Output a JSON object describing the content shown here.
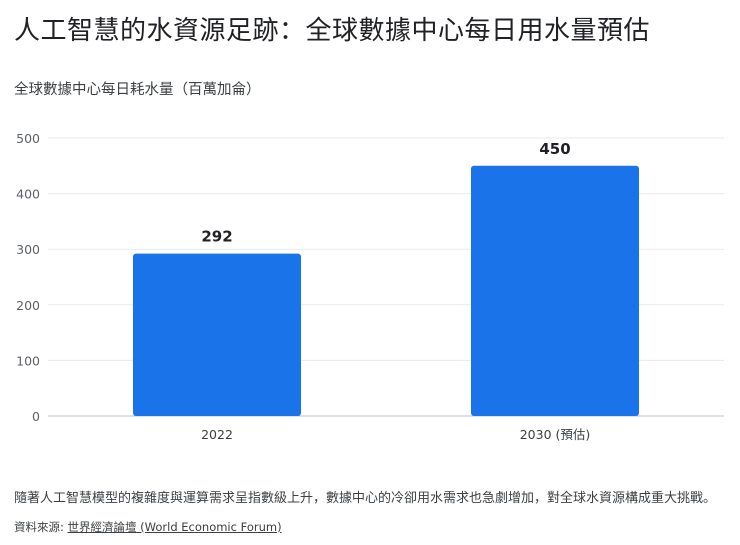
{
  "title": "人工智慧的水資源足跡：全球數據中心每日用水量預估",
  "chart_data": {
    "type": "bar",
    "title": "人工智慧的水資源足跡：全球數據中心每日用水量預估",
    "ylabel": "全球數據中心每日耗水量（百萬加侖）",
    "xlabel": "",
    "categories": [
      "2022",
      "2030 (預估)"
    ],
    "values": [
      292,
      450
    ],
    "ylim": [
      0,
      500
    ],
    "yticks": [
      0,
      100,
      200,
      300,
      400,
      500
    ],
    "data_labels": [
      "292",
      "450"
    ],
    "bar_color": "#1a73e8",
    "grid": true,
    "legend": "none"
  },
  "description": "隨著人工智慧模型的複雜度與運算需求呈指數級上升，數據中心的冷卻用水需求也急劇增加，對全球水資源構成重大挑戰。",
  "source": {
    "prefix": "資料來源: ",
    "link_text": "世界經濟論壇 (World Economic Forum)"
  }
}
